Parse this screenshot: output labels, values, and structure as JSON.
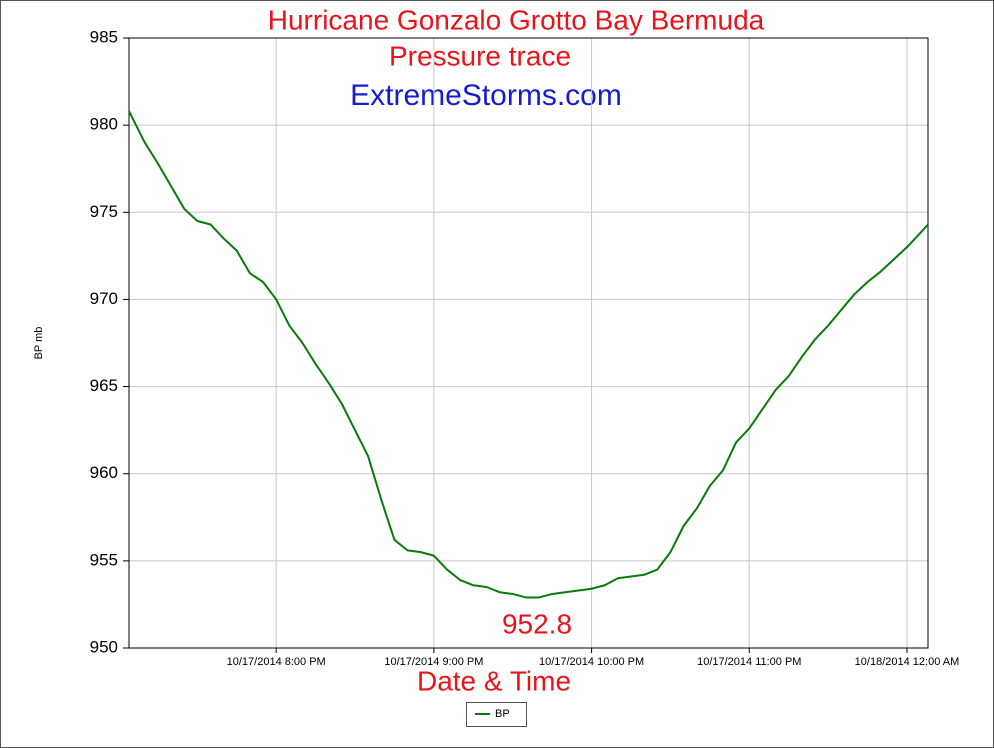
{
  "chart_data": {
    "type": "line",
    "title": "Hurricane Gonzalo Grotto Bay Bermuda",
    "subtitle": "Pressure trace",
    "credit": "ExtremeStorms.com",
    "annotation": "952.8",
    "x_label": "Date & Time",
    "y_label": "BP mb",
    "x": [
      "10/17/2014 7:04 PM",
      "10/17/2014 7:10 PM",
      "10/17/2014 7:15 PM",
      "10/17/2014 7:20 PM",
      "10/17/2014 7:25 PM",
      "10/17/2014 7:30 PM",
      "10/17/2014 7:35 PM",
      "10/17/2014 7:40 PM",
      "10/17/2014 7:45 PM",
      "10/17/2014 7:50 PM",
      "10/17/2014 7:55 PM",
      "10/17/2014 8:00 PM",
      "10/17/2014 8:05 PM",
      "10/17/2014 8:10 PM",
      "10/17/2014 8:15 PM",
      "10/17/2014 8:20 PM",
      "10/17/2014 8:25 PM",
      "10/17/2014 8:30 PM",
      "10/17/2014 8:35 PM",
      "10/17/2014 8:40 PM",
      "10/17/2014 8:45 PM",
      "10/17/2014 8:50 PM",
      "10/17/2014 8:55 PM",
      "10/17/2014 9:00 PM",
      "10/17/2014 9:05 PM",
      "10/17/2014 9:10 PM",
      "10/17/2014 9:15 PM",
      "10/17/2014 9:20 PM",
      "10/17/2014 9:25 PM",
      "10/17/2014 9:30 PM",
      "10/17/2014 9:35 PM",
      "10/17/2014 9:40 PM",
      "10/17/2014 9:45 PM",
      "10/17/2014 9:50 PM",
      "10/17/2014 9:55 PM",
      "10/17/2014 10:00 PM",
      "10/17/2014 10:05 PM",
      "10/17/2014 10:10 PM",
      "10/17/2014 10:15 PM",
      "10/17/2014 10:20 PM",
      "10/17/2014 10:25 PM",
      "10/17/2014 10:30 PM",
      "10/17/2014 10:35 PM",
      "10/17/2014 10:40 PM",
      "10/17/2014 10:45 PM",
      "10/17/2014 10:50 PM",
      "10/17/2014 10:55 PM",
      "10/17/2014 11:00 PM",
      "10/17/2014 11:05 PM",
      "10/17/2014 11:10 PM",
      "10/17/2014 11:15 PM",
      "10/17/2014 11:20 PM",
      "10/17/2014 11:25 PM",
      "10/17/2014 11:30 PM",
      "10/17/2014 11:35 PM",
      "10/17/2014 11:40 PM",
      "10/17/2014 11:45 PM",
      "10/17/2014 11:50 PM",
      "10/17/2014 11:55 PM",
      "10/18/2014 12:00 AM",
      "10/18/2014 12:05 AM",
      "10/18/2014 12:08 AM"
    ],
    "series": [
      {
        "name": "BP",
        "color": "#0a7a0a",
        "values": [
          980.8,
          979,
          977.8,
          976.5,
          975.2,
          974.5,
          974.3,
          973.5,
          972.8,
          971.5,
          971,
          970,
          968.5,
          967.5,
          966.3,
          965.2,
          964,
          962.5,
          961,
          958.5,
          956.2,
          955.6,
          955.5,
          955.3,
          954.5,
          953.9,
          953.6,
          953.5,
          953.2,
          953.1,
          952.9,
          952.9,
          953.1,
          953.2,
          953.3,
          953.4,
          953.6,
          954,
          954.1,
          954.2,
          954.5,
          955.5,
          957,
          958,
          959.3,
          960.2,
          961.8,
          962.6,
          963.7,
          964.8,
          965.6,
          966.7,
          967.7,
          968.5,
          969.4,
          970.3,
          971,
          971.6,
          972.3,
          973,
          973.8,
          974.3
        ]
      }
    ],
    "xlim": [
      "10/17/2014 7:04 PM",
      "10/18/2014 12:08 AM"
    ],
    "xticks": [
      "10/17/2014 8:00 PM",
      "10/17/2014 9:00 PM",
      "10/17/2014 10:00 PM",
      "10/17/2014 11:00 PM",
      "10/18/2014 12:00 AM"
    ],
    "ylim": [
      950,
      985
    ],
    "yticks": [
      950,
      955,
      960,
      965,
      970,
      975,
      980,
      985
    ],
    "grid": true
  }
}
